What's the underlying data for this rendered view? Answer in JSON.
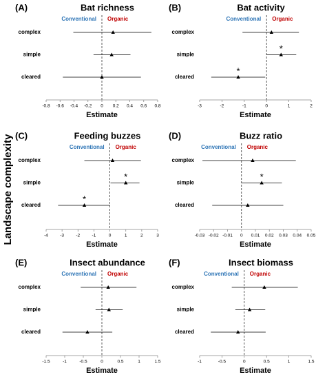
{
  "y_label": "Landscape complexity",
  "chart_data": [
    {
      "type": "forest",
      "panel": "(A)",
      "title": "Bat richness",
      "left_label": "Conventional",
      "right_label": "Organic",
      "left_color": "#2e75b6",
      "right_color": "#c00000",
      "color": "#000000",
      "categories": [
        "complex",
        "simple",
        "cleared"
      ],
      "values": [
        0.16,
        0.14,
        0.0
      ],
      "lower": [
        -0.41,
        -0.12,
        -0.56
      ],
      "upper": [
        0.71,
        0.41,
        0.56
      ],
      "significance": [
        null,
        null,
        null
      ],
      "xlim": [
        -0.8,
        0.8
      ],
      "xticks": [
        -0.8,
        -0.6,
        -0.4,
        -0.2,
        0,
        0.2,
        0.4,
        0.6,
        0.8
      ],
      "xlabel": "Estimate"
    },
    {
      "type": "forest",
      "panel": "(B)",
      "title": "Bat activity",
      "left_label": "Conventional",
      "right_label": "Organic",
      "left_color": "#2e75b6",
      "right_color": "#c00000",
      "color": "#000000",
      "categories": [
        "complex",
        "simple",
        "cleared"
      ],
      "values": [
        0.22,
        0.65,
        -1.27
      ],
      "lower": [
        -1.08,
        0,
        -2.48
      ],
      "upper": [
        1.45,
        1.33,
        -0.06
      ],
      "significance": [
        null,
        "*",
        "*"
      ],
      "xlim": [
        -3,
        2
      ],
      "xticks": [
        -3,
        -2,
        -1,
        0,
        1,
        2
      ],
      "xlabel": "Estimate"
    },
    {
      "type": "forest",
      "panel": "(C)",
      "title": "Feeding buzzes",
      "left_label": "Conventional",
      "right_label": "Organic",
      "left_color": "#2e75b6",
      "right_color": "#c00000",
      "color": "#000000",
      "categories": [
        "complex",
        "simple",
        "cleared"
      ],
      "values": [
        0.17,
        1.0,
        -1.6
      ],
      "lower": [
        -1.6,
        0.04,
        -3.25
      ],
      "upper": [
        1.95,
        1.86,
        0
      ],
      "significance": [
        null,
        "*",
        "*"
      ],
      "xlim": [
        -4,
        3
      ],
      "xticks": [
        -4,
        -3,
        -2,
        -1,
        0,
        1,
        2,
        3
      ],
      "xlabel": "Estimate"
    },
    {
      "type": "forest",
      "panel": "(D)",
      "title": "Buzz ratio",
      "left_label": "Conventional",
      "right_label": "Organic",
      "left_color": "#2e75b6",
      "right_color": "#c00000",
      "color": "#000000",
      "categories": [
        "complex",
        "simple",
        "cleared"
      ],
      "values": [
        0.008,
        0.0145,
        0.0045
      ],
      "lower": [
        -0.028,
        0,
        -0.021
      ],
      "upper": [
        0.039,
        0.029,
        0.03
      ],
      "significance": [
        null,
        "*",
        null
      ],
      "xlim": [
        -0.03,
        0.05
      ],
      "xticks": [
        -0.03,
        -0.02,
        -0.01,
        0,
        0.01,
        0.02,
        0.03,
        0.04,
        0.05
      ],
      "xlabel": "Estimate"
    },
    {
      "type": "forest",
      "panel": "(E)",
      "title": "Insect abundance",
      "left_label": "Conventional",
      "right_label": "Organic",
      "left_color": "#2e75b6",
      "right_color": "#c00000",
      "color": "#000000",
      "categories": [
        "complex",
        "simple",
        "cleared"
      ],
      "values": [
        0.17,
        0.19,
        -0.39
      ],
      "lower": [
        -0.57,
        -0.17,
        -1.06
      ],
      "upper": [
        0.93,
        0.56,
        0.28
      ],
      "significance": [
        null,
        null,
        null
      ],
      "xlim": [
        -1.5,
        1.5
      ],
      "xticks": [
        -1.5,
        -1,
        -0.5,
        0,
        0.5,
        1,
        1.5
      ],
      "xlabel": "Estimate"
    },
    {
      "type": "forest",
      "panel": "(F)",
      "title": "Insect biomass",
      "left_label": "Conventional",
      "right_label": "Organic",
      "left_color": "#2e75b6",
      "right_color": "#c00000",
      "color": "#000000",
      "categories": [
        "complex",
        "simple",
        "cleared"
      ],
      "values": [
        0.45,
        0.12,
        -0.14
      ],
      "lower": [
        -0.28,
        -0.2,
        -0.75
      ],
      "upper": [
        1.2,
        0.47,
        0.48
      ],
      "significance": [
        null,
        null,
        null
      ],
      "xlim": [
        -1,
        1.5
      ],
      "xticks": [
        -1,
        -0.5,
        0,
        0.5,
        1,
        1.5
      ],
      "xlabel": "Estimate"
    }
  ]
}
